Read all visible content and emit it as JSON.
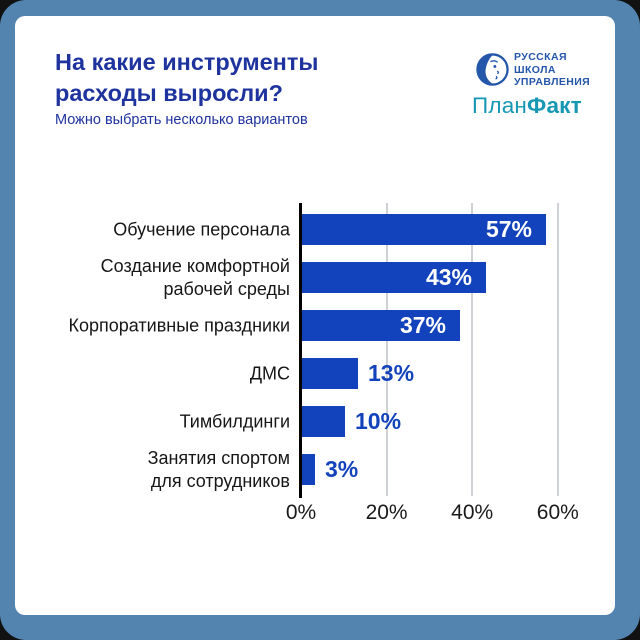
{
  "window": {
    "outer_bg": "#111111",
    "frame_color": "#5383AF",
    "card_color": "#FFFFFF"
  },
  "header": {
    "title": "На какие инструменты\nрасходы выросли?",
    "subtitle": "Можно выбрать несколько вариантов",
    "title_color": "#1E339E"
  },
  "logos": {
    "rsu": {
      "lines": [
        "РУССКАЯ",
        "ШКОЛА",
        "УПРАВЛЕНИЯ"
      ],
      "color": "#2456A9"
    },
    "planfact": {
      "part1": "План",
      "part2": "Факт",
      "color": "#1697B4"
    }
  },
  "chart_data": {
    "type": "bar",
    "orientation": "horizontal",
    "title": "На какие инструменты расходы выросли?",
    "subtitle": "Можно выбрать несколько вариантов",
    "categories": [
      "Обучение персонала",
      "Создание комфортной\nрабочей среды",
      "Корпоративные праздники",
      "ДМС",
      "Тимбилдинги",
      "Занятия спортом\nдля сотрудников"
    ],
    "values": [
      57,
      43,
      37,
      13,
      10,
      3
    ],
    "value_labels": [
      "57%",
      "43%",
      "37%",
      "13%",
      "10%",
      "3%"
    ],
    "x_ticks": [
      "0%",
      "20%",
      "40%",
      "60%"
    ],
    "x_tick_values": [
      0,
      20,
      40,
      60
    ],
    "xlim": [
      0,
      65
    ],
    "bar_color": "#1243BC",
    "value_label_color_inside": "#FFFFFF",
    "value_label_color_outside": "#1243BC",
    "grid": true,
    "gridline_color": "#CDD0D4",
    "axis_color": "#000000",
    "legend": "none"
  }
}
